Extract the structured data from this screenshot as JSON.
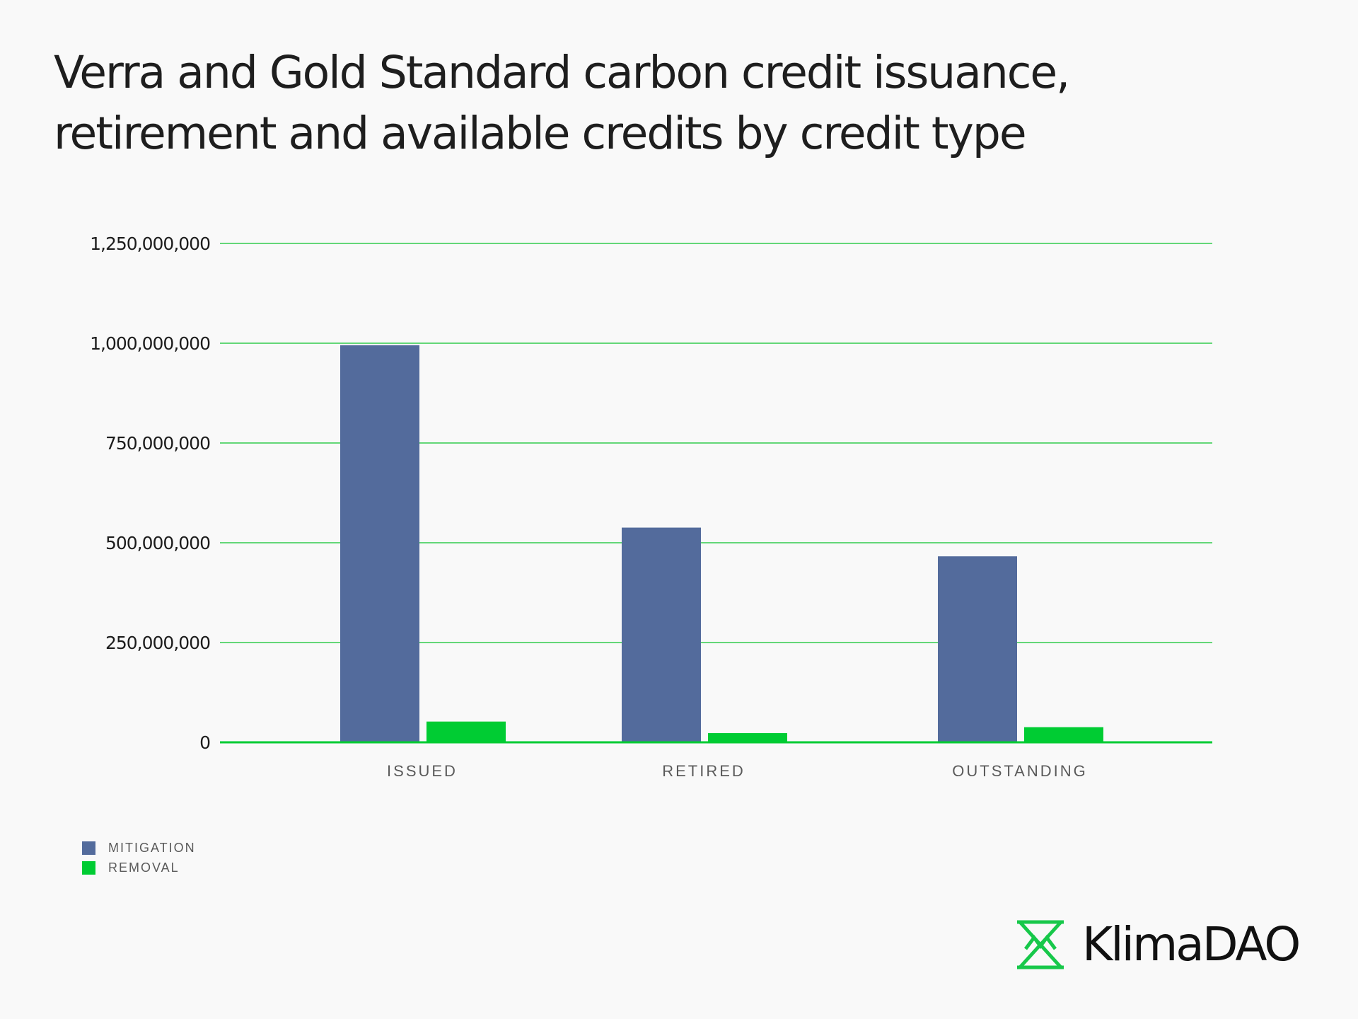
{
  "title": {
    "line1": "Verra and Gold Standard carbon credit issuance,",
    "line2": "retirement and available credits by credit type"
  },
  "brand": {
    "name": "KlimaDAO",
    "icon": "klimadao-logo-icon"
  },
  "colors": {
    "mitigation": "#536b9c",
    "removal": "#00cc33",
    "grid": "#33cc4d"
  },
  "chart_data": {
    "type": "bar",
    "categories": [
      "ISSUED",
      "RETIRED",
      "OUTSTANDING"
    ],
    "series": [
      {
        "name": "MITIGATION",
        "values": [
          995000000,
          538000000,
          466000000
        ]
      },
      {
        "name": "REMOVAL",
        "values": [
          52000000,
          23000000,
          38000000
        ]
      }
    ],
    "ylim": [
      0,
      1250000000
    ],
    "yticks": [
      0,
      250000000,
      500000000,
      750000000,
      1000000000,
      1250000000
    ],
    "ytick_labels": [
      "0",
      "250,000,000",
      "500,000,000",
      "750,000,000",
      "1,000,000,000",
      "1,250,000,000"
    ],
    "grid": true,
    "legend": "bottom-left"
  }
}
